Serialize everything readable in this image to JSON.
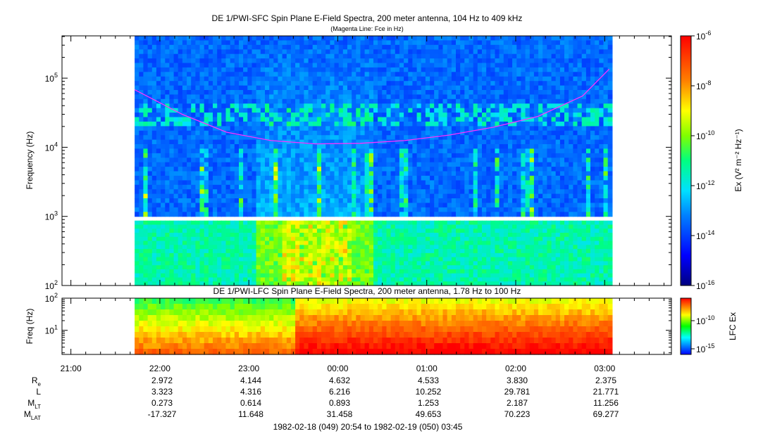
{
  "figure": {
    "upper_title": "DE 1/PWI-SFC  Spin Plane E-Field Spectra, 200 meter antenna, 104 Hz to 409 kHz",
    "upper_subtitle": "(Magenta Line: Fce in Hz)",
    "lower_title": "DE 1/PWI-LFC  Spin Plane E-Field Spectra, 200 meter antenna, 1.78 Hz to 100 Hz",
    "date_range": "1982-02-18 (049) 20:54 to 1982-02-19 (050) 03:45"
  },
  "chart_data": [
    {
      "type": "heatmap",
      "title": "DE 1/PWI-SFC  Spin Plane E-Field Spectra, 200 meter antenna, 104 Hz to 409 kHz",
      "subtitle": "(Magenta Line: Fce in Hz)",
      "ylabel": "Frequency (Hz)",
      "yscale": "log",
      "ylim": [
        100,
        409000
      ],
      "yticks": [
        {
          "value": 100,
          "base": "10",
          "exp": "2"
        },
        {
          "value": 1000,
          "base": "10",
          "exp": "3"
        },
        {
          "value": 10000,
          "base": "10",
          "exp": "4"
        },
        {
          "value": 100000,
          "base": "10",
          "exp": "5"
        }
      ],
      "xlim": [
        "20:54",
        "03:45"
      ],
      "data_extent": [
        "21:43",
        "03:05"
      ],
      "colorbar": {
        "label": "Ex (V² m⁻² Hz⁻¹)",
        "scale": "log",
        "range": [
          1e-16,
          1e-06
        ],
        "ticks": [
          {
            "value": 1e-06,
            "base": "10",
            "exp": "-6"
          },
          {
            "value": 1e-08,
            "base": "10",
            "exp": "-8"
          },
          {
            "value": 1e-10,
            "base": "10",
            "exp": "-10"
          },
          {
            "value": 1e-12,
            "base": "10",
            "exp": "-12"
          },
          {
            "value": 1e-14,
            "base": "10",
            "exp": "-14"
          },
          {
            "value": 1e-16,
            "base": "10",
            "exp": "-16"
          }
        ]
      },
      "overlay": {
        "name": "Fce",
        "color": "#ff33ff",
        "points": [
          {
            "t": "21:43",
            "f": 68000
          },
          {
            "t": "22:15",
            "f": 30000
          },
          {
            "t": "22:45",
            "f": 16500
          },
          {
            "t": "23:15",
            "f": 12500
          },
          {
            "t": "23:45",
            "f": 11200
          },
          {
            "t": "00:15",
            "f": 11400
          },
          {
            "t": "00:45",
            "f": 12500
          },
          {
            "t": "01:15",
            "f": 15000
          },
          {
            "t": "01:45",
            "f": 19500
          },
          {
            "t": "02:15",
            "f": 28000
          },
          {
            "t": "02:45",
            "f": 55000
          },
          {
            "t": "03:03",
            "f": 135000
          }
        ]
      }
    },
    {
      "type": "heatmap",
      "title": "DE 1/PWI-LFC  Spin Plane E-Field Spectra, 200 meter antenna, 1.78 Hz to 100 Hz",
      "ylabel": "Freq (Hz)",
      "yscale": "log",
      "ylim": [
        1.78,
        100
      ],
      "yticks": [
        {
          "value": 10,
          "base": "10",
          "exp": "1"
        },
        {
          "value": 100,
          "base": "10",
          "exp": "2"
        }
      ],
      "xlim": [
        "20:54",
        "03:45"
      ],
      "data_extent": [
        "21:43",
        "03:05"
      ],
      "colorbar": {
        "label": "LFC Ex",
        "scale": "log",
        "ticks": [
          {
            "value": 1e-10,
            "base": "10",
            "exp": "-10"
          },
          {
            "value": 1e-15,
            "base": "10",
            "exp": "-15"
          }
        ]
      }
    }
  ],
  "time_axis": {
    "ticks": [
      "21:00",
      "22:00",
      "23:00",
      "00:00",
      "01:00",
      "02:00",
      "03:00"
    ]
  },
  "ephemeris": {
    "rows": [
      {
        "label": "R",
        "sub": "e",
        "values": [
          "2.972",
          "4.144",
          "4.632",
          "4.533",
          "3.830",
          "2.375"
        ]
      },
      {
        "label": "L",
        "sub": "",
        "values": [
          "3.323",
          "4.316",
          "6.216",
          "10.252",
          "29.781",
          "21.771"
        ]
      },
      {
        "label": "M",
        "sub": "LT",
        "values": [
          "0.273",
          "0.614",
          "0.893",
          "1.253",
          "2.187",
          "11.256"
        ]
      },
      {
        "label": "M",
        "sub": "LAT",
        "values": [
          "-17.327",
          "11.648",
          "31.458",
          "49.653",
          "70.223",
          "69.277"
        ]
      }
    ]
  }
}
